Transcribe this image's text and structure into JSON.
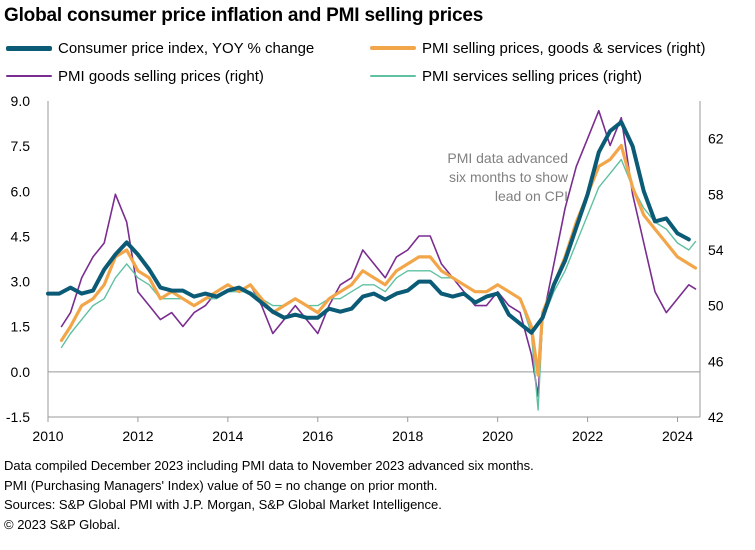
{
  "title": "Global consumer price inflation and PMI selling prices",
  "colors": {
    "cpi": "#0b5b77",
    "pmi_total": "#f2a649",
    "pmi_goods": "#7a2d90",
    "pmi_services": "#5fc1a1",
    "axis_text": "#000000",
    "annotation": "#808080"
  },
  "legend": [
    {
      "label": "Consumer price index, YOY % change",
      "series": "cpi"
    },
    {
      "label": "PMI selling prices, goods & services (right)",
      "series": "pmi_total"
    },
    {
      "label": "PMI goods selling prices (right)",
      "series": "pmi_goods"
    },
    {
      "label": "PMI services selling prices (right)",
      "series": "pmi_services"
    }
  ],
  "annotation": [
    "PMI data advanced",
    "six months to show",
    "lead on CPI"
  ],
  "footer": [
    "Data compiled December 2023 including PMI data to November 2023 advanced six months.",
    "PMI (Purchasing Managers' Index) value of 50 = no change on prior month.",
    "Sources: S&P Global PMI with J.P. Morgan, S&P Global Market Intelligence.",
    "© 2023 S&P Global."
  ],
  "chart_data": {
    "type": "line",
    "title": "Global consumer price inflation and PMI selling prices",
    "x_ticks": [
      "2010",
      "2012",
      "2014",
      "2016",
      "2018",
      "2020",
      "2022",
      "2024"
    ],
    "xlim": [
      2010.0,
      2024.5
    ],
    "y_left": {
      "ticks": [
        "9.0",
        "7.5",
        "6.0",
        "4.5",
        "3.0",
        "1.5",
        "0.0",
        "-1.5"
      ],
      "ylim": [
        -1.5,
        9.0
      ]
    },
    "y_right": {
      "ticks": [
        "62",
        "58",
        "54",
        "50",
        "46",
        "42"
      ],
      "ylim": [
        42,
        64.7
      ]
    },
    "zero_line": 0,
    "series": [
      {
        "key": "cpi",
        "name": "Consumer price index, YOY % change",
        "axis": "left",
        "points": [
          [
            2010.0,
            2.6
          ],
          [
            2010.25,
            2.6
          ],
          [
            2010.5,
            2.8
          ],
          [
            2010.75,
            2.6
          ],
          [
            2011.0,
            2.7
          ],
          [
            2011.25,
            3.4
          ],
          [
            2011.5,
            3.9
          ],
          [
            2011.75,
            4.3
          ],
          [
            2012.0,
            3.9
          ],
          [
            2012.25,
            3.4
          ],
          [
            2012.5,
            2.8
          ],
          [
            2012.75,
            2.7
          ],
          [
            2013.0,
            2.7
          ],
          [
            2013.25,
            2.5
          ],
          [
            2013.5,
            2.6
          ],
          [
            2013.75,
            2.5
          ],
          [
            2014.0,
            2.7
          ],
          [
            2014.25,
            2.8
          ],
          [
            2014.5,
            2.6
          ],
          [
            2014.75,
            2.3
          ],
          [
            2015.0,
            2.0
          ],
          [
            2015.25,
            1.8
          ],
          [
            2015.5,
            1.9
          ],
          [
            2015.75,
            1.8
          ],
          [
            2016.0,
            1.8
          ],
          [
            2016.25,
            2.1
          ],
          [
            2016.5,
            2.0
          ],
          [
            2016.75,
            2.1
          ],
          [
            2017.0,
            2.5
          ],
          [
            2017.25,
            2.6
          ],
          [
            2017.5,
            2.4
          ],
          [
            2017.75,
            2.6
          ],
          [
            2018.0,
            2.7
          ],
          [
            2018.25,
            3.0
          ],
          [
            2018.5,
            3.0
          ],
          [
            2018.75,
            2.6
          ],
          [
            2019.0,
            2.5
          ],
          [
            2019.25,
            2.6
          ],
          [
            2019.5,
            2.3
          ],
          [
            2019.75,
            2.5
          ],
          [
            2020.0,
            2.6
          ],
          [
            2020.25,
            1.9
          ],
          [
            2020.5,
            1.6
          ],
          [
            2020.75,
            1.3
          ],
          [
            2021.0,
            1.8
          ],
          [
            2021.25,
            2.9
          ],
          [
            2021.5,
            3.7
          ],
          [
            2021.75,
            4.8
          ],
          [
            2022.0,
            5.9
          ],
          [
            2022.25,
            7.3
          ],
          [
            2022.5,
            8.0
          ],
          [
            2022.75,
            8.3
          ],
          [
            2023.0,
            7.5
          ],
          [
            2023.25,
            6.0
          ],
          [
            2023.5,
            5.0
          ],
          [
            2023.75,
            5.1
          ],
          [
            2024.0,
            4.6
          ],
          [
            2024.25,
            4.4
          ]
        ]
      },
      {
        "key": "pmi_total",
        "name": "PMI selling prices, goods & services (right)",
        "axis": "right",
        "points": [
          [
            2010.3,
            47.5
          ],
          [
            2010.5,
            48.5
          ],
          [
            2010.75,
            50.0
          ],
          [
            2011.0,
            50.5
          ],
          [
            2011.25,
            51.5
          ],
          [
            2011.5,
            53.5
          ],
          [
            2011.75,
            54.0
          ],
          [
            2012.0,
            52.5
          ],
          [
            2012.25,
            52.0
          ],
          [
            2012.5,
            50.5
          ],
          [
            2012.75,
            51.0
          ],
          [
            2013.0,
            50.5
          ],
          [
            2013.25,
            50.0
          ],
          [
            2013.5,
            50.5
          ],
          [
            2013.75,
            51.0
          ],
          [
            2014.0,
            51.5
          ],
          [
            2014.25,
            51.0
          ],
          [
            2014.5,
            51.5
          ],
          [
            2014.75,
            50.5
          ],
          [
            2015.0,
            49.5
          ],
          [
            2015.25,
            50.0
          ],
          [
            2015.5,
            50.5
          ],
          [
            2015.75,
            50.0
          ],
          [
            2016.0,
            49.5
          ],
          [
            2016.25,
            50.5
          ],
          [
            2016.5,
            51.0
          ],
          [
            2016.75,
            51.5
          ],
          [
            2017.0,
            52.5
          ],
          [
            2017.25,
            52.0
          ],
          [
            2017.5,
            51.5
          ],
          [
            2017.75,
            52.5
          ],
          [
            2018.0,
            53.0
          ],
          [
            2018.25,
            53.5
          ],
          [
            2018.5,
            53.5
          ],
          [
            2018.75,
            52.5
          ],
          [
            2019.0,
            52.0
          ],
          [
            2019.25,
            51.5
          ],
          [
            2019.5,
            51.0
          ],
          [
            2019.75,
            51.0
          ],
          [
            2020.0,
            51.5
          ],
          [
            2020.25,
            51.0
          ],
          [
            2020.5,
            50.5
          ],
          [
            2020.75,
            48.5
          ],
          [
            2020.9,
            45.0
          ],
          [
            2021.0,
            49.5
          ],
          [
            2021.25,
            51.5
          ],
          [
            2021.5,
            53.5
          ],
          [
            2021.75,
            56.0
          ],
          [
            2022.0,
            58.0
          ],
          [
            2022.25,
            60.0
          ],
          [
            2022.5,
            60.5
          ],
          [
            2022.75,
            61.5
          ],
          [
            2023.0,
            58.5
          ],
          [
            2023.25,
            56.5
          ],
          [
            2023.5,
            55.5
          ],
          [
            2023.75,
            54.5
          ],
          [
            2024.0,
            53.5
          ],
          [
            2024.25,
            53.0
          ],
          [
            2024.4,
            52.7
          ]
        ]
      },
      {
        "key": "pmi_goods",
        "name": "PMI goods selling prices (right)",
        "axis": "right",
        "points": [
          [
            2010.3,
            48.5
          ],
          [
            2010.5,
            49.5
          ],
          [
            2010.75,
            52.0
          ],
          [
            2011.0,
            53.5
          ],
          [
            2011.25,
            54.5
          ],
          [
            2011.5,
            58.0
          ],
          [
            2011.75,
            56.0
          ],
          [
            2012.0,
            51.0
          ],
          [
            2012.25,
            50.0
          ],
          [
            2012.5,
            49.0
          ],
          [
            2012.75,
            49.5
          ],
          [
            2013.0,
            48.5
          ],
          [
            2013.25,
            49.5
          ],
          [
            2013.5,
            50.0
          ],
          [
            2013.75,
            51.0
          ],
          [
            2014.0,
            51.5
          ],
          [
            2014.25,
            51.0
          ],
          [
            2014.5,
            51.5
          ],
          [
            2014.75,
            50.0
          ],
          [
            2015.0,
            48.0
          ],
          [
            2015.25,
            49.0
          ],
          [
            2015.5,
            50.0
          ],
          [
            2015.75,
            49.0
          ],
          [
            2016.0,
            48.0
          ],
          [
            2016.25,
            50.0
          ],
          [
            2016.5,
            51.5
          ],
          [
            2016.75,
            52.0
          ],
          [
            2017.0,
            54.0
          ],
          [
            2017.25,
            53.0
          ],
          [
            2017.5,
            52.0
          ],
          [
            2017.75,
            53.5
          ],
          [
            2018.0,
            54.0
          ],
          [
            2018.25,
            55.0
          ],
          [
            2018.5,
            55.0
          ],
          [
            2018.75,
            53.0
          ],
          [
            2019.0,
            52.0
          ],
          [
            2019.25,
            51.0
          ],
          [
            2019.5,
            50.0
          ],
          [
            2019.75,
            50.0
          ],
          [
            2020.0,
            51.0
          ],
          [
            2020.25,
            50.0
          ],
          [
            2020.5,
            49.5
          ],
          [
            2020.75,
            46.5
          ],
          [
            2020.9,
            43.5
          ],
          [
            2021.0,
            49.0
          ],
          [
            2021.25,
            53.0
          ],
          [
            2021.5,
            57.0
          ],
          [
            2021.75,
            60.0
          ],
          [
            2022.0,
            62.0
          ],
          [
            2022.25,
            64.0
          ],
          [
            2022.5,
            61.5
          ],
          [
            2022.75,
            63.5
          ],
          [
            2023.0,
            58.0
          ],
          [
            2023.25,
            54.5
          ],
          [
            2023.5,
            51.0
          ],
          [
            2023.75,
            49.5
          ],
          [
            2024.0,
            50.5
          ],
          [
            2024.25,
            51.5
          ],
          [
            2024.4,
            51.2
          ]
        ]
      },
      {
        "key": "pmi_services",
        "name": "PMI services selling prices (right)",
        "axis": "right",
        "points": [
          [
            2010.3,
            47.0
          ],
          [
            2010.5,
            48.0
          ],
          [
            2010.75,
            49.0
          ],
          [
            2011.0,
            50.0
          ],
          [
            2011.25,
            50.5
          ],
          [
            2011.5,
            52.0
          ],
          [
            2011.75,
            53.0
          ],
          [
            2012.0,
            52.0
          ],
          [
            2012.25,
            51.5
          ],
          [
            2012.5,
            50.5
          ],
          [
            2012.75,
            50.5
          ],
          [
            2013.0,
            50.5
          ],
          [
            2013.25,
            50.0
          ],
          [
            2013.5,
            50.5
          ],
          [
            2013.75,
            50.5
          ],
          [
            2014.0,
            51.0
          ],
          [
            2014.25,
            51.0
          ],
          [
            2014.5,
            51.0
          ],
          [
            2014.75,
            50.5
          ],
          [
            2015.0,
            50.0
          ],
          [
            2015.25,
            50.0
          ],
          [
            2015.5,
            50.5
          ],
          [
            2015.75,
            50.0
          ],
          [
            2016.0,
            50.0
          ],
          [
            2016.25,
            50.5
          ],
          [
            2016.5,
            50.5
          ],
          [
            2016.75,
            51.0
          ],
          [
            2017.0,
            51.5
          ],
          [
            2017.25,
            51.5
          ],
          [
            2017.5,
            51.0
          ],
          [
            2017.75,
            52.0
          ],
          [
            2018.0,
            52.5
          ],
          [
            2018.25,
            52.5
          ],
          [
            2018.5,
            52.5
          ],
          [
            2018.75,
            52.0
          ],
          [
            2019.0,
            52.0
          ],
          [
            2019.25,
            51.5
          ],
          [
            2019.5,
            51.0
          ],
          [
            2019.75,
            51.0
          ],
          [
            2020.0,
            51.5
          ],
          [
            2020.25,
            51.0
          ],
          [
            2020.5,
            50.5
          ],
          [
            2020.75,
            48.0
          ],
          [
            2020.9,
            42.5
          ],
          [
            2021.0,
            49.0
          ],
          [
            2021.25,
            51.0
          ],
          [
            2021.5,
            52.5
          ],
          [
            2021.75,
            54.5
          ],
          [
            2022.0,
            56.5
          ],
          [
            2022.25,
            58.5
          ],
          [
            2022.5,
            59.5
          ],
          [
            2022.75,
            60.5
          ],
          [
            2023.0,
            58.5
          ],
          [
            2023.25,
            57.0
          ],
          [
            2023.5,
            56.0
          ],
          [
            2023.75,
            55.5
          ],
          [
            2024.0,
            54.5
          ],
          [
            2024.25,
            54.0
          ],
          [
            2024.4,
            54.6
          ]
        ]
      }
    ]
  }
}
